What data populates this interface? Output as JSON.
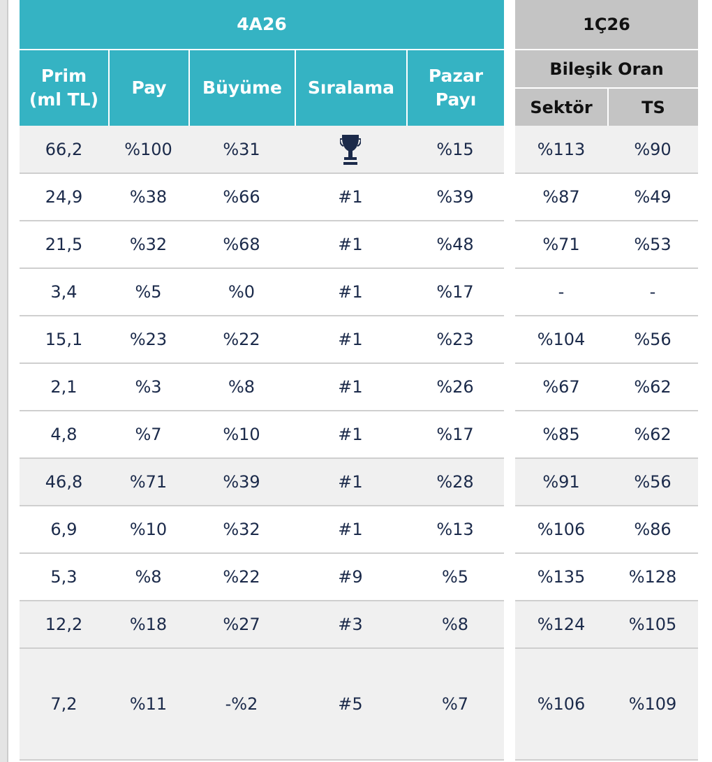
{
  "left_table": {
    "title": "4A26",
    "columns": [
      "Prim\n(ml TL)",
      "Pay",
      "Büyüme",
      "Sıralama",
      "Pazar\nPayı"
    ],
    "rows": [
      [
        "66,2",
        "%100",
        "%31",
        null,
        "%15"
      ],
      [
        "24,9",
        "%38",
        "%66",
        "#1",
        "%39"
      ],
      [
        "21,5",
        "%32",
        "%68",
        "#1",
        "%48"
      ],
      [
        "3,4",
        "%5",
        "%0",
        "#1",
        "%17"
      ],
      [
        "15,1",
        "%23",
        "%22",
        "#1",
        "%23"
      ],
      [
        "2,1",
        "%3",
        "%8",
        "#1",
        "%26"
      ],
      [
        "4,8",
        "%7",
        "%10",
        "#1",
        "%17"
      ],
      [
        "46,8",
        "%71",
        "%39",
        "#1",
        "%28"
      ],
      [
        "6,9",
        "%10",
        "%32",
        "#1",
        "%13"
      ],
      [
        "5,3",
        "%8",
        "%22",
        "#9",
        "%5"
      ],
      [
        "12,2",
        "%18",
        "%27",
        "#3",
        "%8"
      ],
      [
        "7,2",
        "%11",
        "-%2",
        "#5",
        "%7"
      ]
    ]
  },
  "right_table": {
    "title": "1Ç26",
    "group": "Bileşik Oran",
    "columns": [
      "Sektör",
      "TS"
    ],
    "rows": [
      [
        "%113",
        "%90"
      ],
      [
        "%87",
        "%49"
      ],
      [
        "%71",
        "%53"
      ],
      [
        "-",
        "-"
      ],
      [
        "%104",
        "%56"
      ],
      [
        "%67",
        "%62"
      ],
      [
        "%85",
        "%62"
      ],
      [
        "%91",
        "%56"
      ],
      [
        "%106",
        "%86"
      ],
      [
        "%135",
        "%128"
      ],
      [
        "%124",
        "%105"
      ],
      [
        "%106",
        "%109"
      ]
    ]
  }
}
